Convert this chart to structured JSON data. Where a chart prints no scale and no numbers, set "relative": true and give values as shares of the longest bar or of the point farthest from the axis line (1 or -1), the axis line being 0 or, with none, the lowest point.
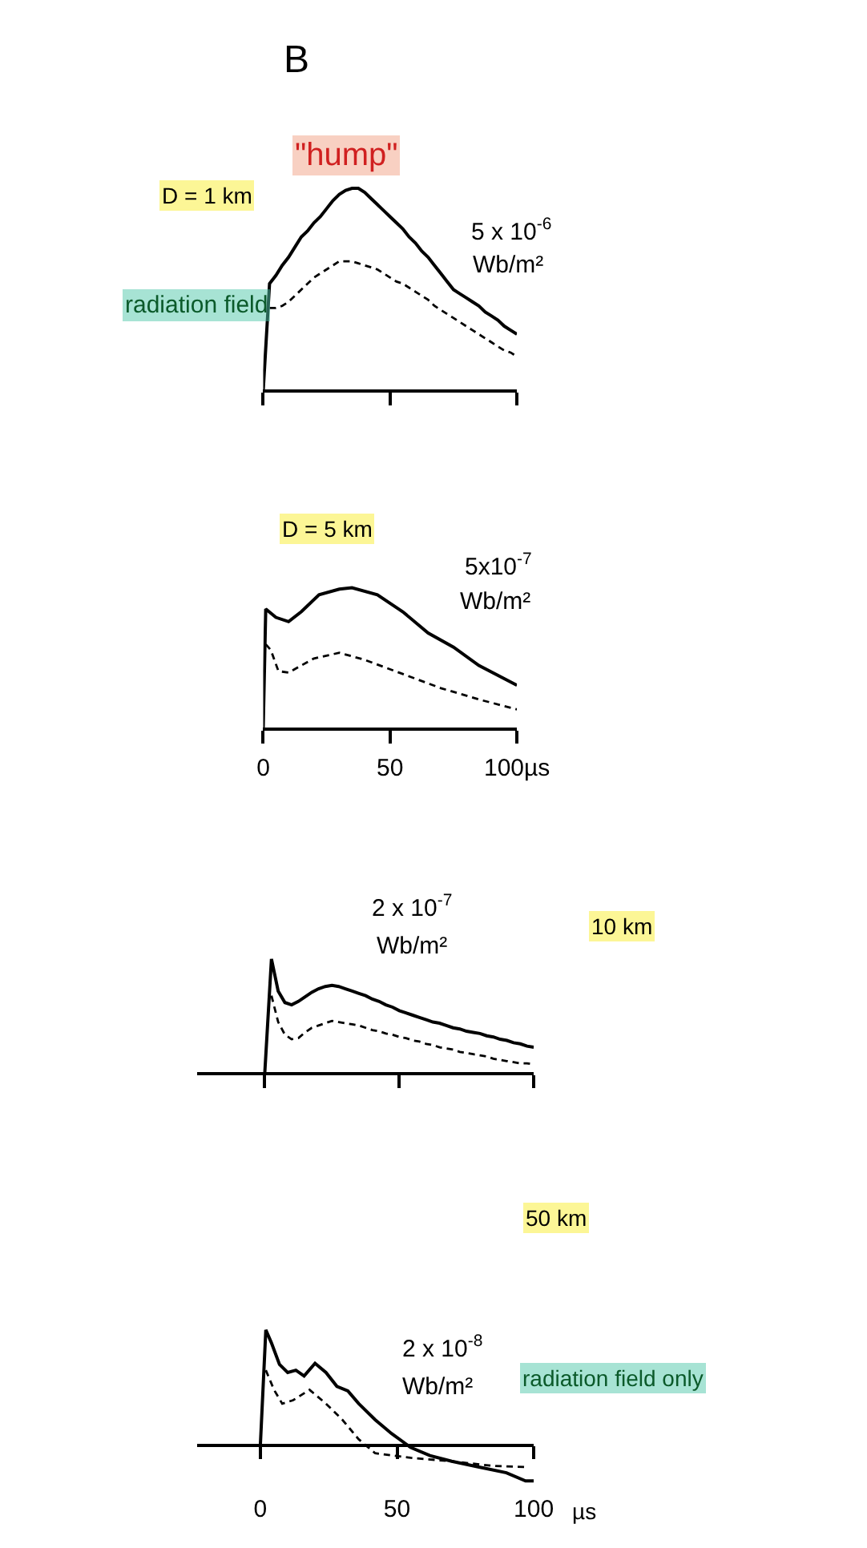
{
  "chart_data": [
    {
      "type": "line",
      "title": "D = 1 km",
      "relative": true,
      "categories": [
        null,
        null,
        null,
        null,
        null,
        null,
        null,
        null,
        null,
        null,
        null,
        null,
        null,
        null,
        null,
        null,
        null,
        null,
        null,
        null,
        null,
        null,
        null,
        null,
        null,
        null,
        null,
        null,
        null,
        null,
        null,
        null,
        null,
        null,
        null,
        null,
        null,
        null,
        null,
        null,
        null
      ],
      "marker": "none",
      "annotations": [
        "B",
        "\"hump\"",
        "radiation field",
        "5 x 10$^{-6}$",
        "Wb/m²"
      ],
      "series": [
        {
          "color": "#000000",
          "line_style": "solid",
          "values": [
            0,
            0.53,
            0.57,
            0.62,
            0.66,
            0.71,
            0.76,
            0.79,
            0.83,
            0.86,
            0.9,
            0.94,
            0.97,
            0.99,
            1,
            1,
            0.98,
            0.95,
            0.92,
            0.89,
            0.86,
            0.83,
            0.8,
            0.76,
            0.73,
            0.69,
            0.66,
            0.62,
            0.58,
            0.54,
            0.5,
            0.48,
            0.46,
            0.44,
            0.42,
            0.39,
            0.37,
            0.35,
            0.32,
            0.3,
            0.28
          ]
        },
        {
          "color": "#000000",
          "line_style": "dashed",
          "values": [
            null,
            0.41,
            0.41,
            0.42,
            0.44,
            0.47,
            0.5,
            0.53,
            0.56,
            0.58,
            0.6,
            0.62,
            0.64,
            0.64,
            0.64,
            0.63,
            0.62,
            0.61,
            0.6,
            0.58,
            0.56,
            0.54,
            0.53,
            0.51,
            0.49,
            0.47,
            0.45,
            0.42,
            0.4,
            0.38,
            0.36,
            0.34,
            0.32,
            0.3,
            0.28,
            0.26,
            0.24,
            0.22,
            0.2,
            0.19,
            0.17
          ]
        }
      ]
    },
    {
      "type": "line",
      "title": "D = 5 km",
      "relative": true,
      "xlim": [
        0,
        100
      ],
      "xticks": [
        0,
        50,
        {
          "value": 100,
          "label": "100µs"
        }
      ],
      "marker": "none",
      "annotations": [
        "5x10$^{-7}$",
        "Wb/m²"
      ],
      "series": [
        {
          "color": "#000000",
          "line_style": "solid",
          "x": [
            0,
            1,
            5,
            10,
            15,
            22,
            30,
            35,
            45,
            55,
            65,
            75,
            85,
            100
          ],
          "values": [
            0,
            0.85,
            0.79,
            0.76,
            0.83,
            0.95,
            0.99,
            1,
            0.95,
            0.83,
            0.68,
            0.58,
            0.45,
            0.31
          ]
        },
        {
          "color": "#000000",
          "line_style": "dashed",
          "x": [
            1,
            3,
            6,
            10,
            20,
            30,
            40,
            55,
            70,
            85,
            100
          ],
          "values": [
            0.6,
            0.56,
            0.41,
            0.4,
            0.5,
            0.54,
            0.49,
            0.39,
            0.29,
            0.21,
            0.14
          ]
        }
      ]
    },
    {
      "type": "line",
      "relative": true,
      "categories": [
        null,
        null,
        null,
        null,
        null,
        null,
        null,
        null,
        null,
        null,
        null,
        null,
        null,
        null,
        null,
        null,
        null,
        null,
        null,
        null,
        null,
        null,
        null,
        null,
        null,
        null,
        null,
        null,
        null,
        null,
        null,
        null,
        null,
        null,
        null,
        null,
        null,
        null,
        null,
        null,
        null,
        null,
        null,
        null,
        null,
        null,
        null,
        null,
        null,
        null,
        null
      ],
      "marker": "none",
      "annotations": [
        "2 x 10$^{-7}$",
        "Wb/m²",
        "10 km"
      ],
      "series": [
        {
          "color": "#000000",
          "line_style": "solid",
          "values": [
            null,
            null,
            null,
            null,
            null,
            null,
            null,
            null,
            null,
            null,
            0,
            1,
            0.72,
            0.62,
            0.6,
            0.63,
            0.67,
            0.71,
            0.74,
            0.76,
            0.77,
            0.76,
            0.74,
            0.72,
            0.7,
            0.68,
            0.65,
            0.63,
            0.6,
            0.58,
            0.55,
            0.53,
            0.51,
            0.49,
            0.47,
            0.45,
            0.44,
            0.42,
            0.4,
            0.39,
            0.37,
            0.36,
            0.35,
            0.33,
            0.32,
            0.3,
            0.29,
            0.27,
            0.26,
            0.24,
            0.23
          ]
        },
        {
          "color": "#000000",
          "line_style": "dashed",
          "values": [
            null,
            null,
            null,
            null,
            null,
            null,
            null,
            null,
            null,
            null,
            null,
            0.68,
            0.45,
            0.34,
            0.3,
            0.31,
            0.36,
            0.4,
            0.42,
            0.44,
            0.46,
            0.45,
            0.44,
            0.43,
            0.42,
            0.4,
            0.38,
            0.37,
            0.35,
            0.34,
            0.32,
            0.31,
            0.29,
            0.28,
            0.26,
            0.25,
            0.23,
            0.22,
            0.21,
            0.19,
            0.18,
            0.17,
            0.16,
            0.15,
            0.13,
            0.12,
            0.11,
            0.1,
            0.09,
            0.09,
            0.08
          ]
        }
      ]
    },
    {
      "type": "line",
      "title": "50 km",
      "xlabel": "µs",
      "relative": true,
      "xlim": [
        -23,
        100
      ],
      "xticks": [
        0,
        50,
        100
      ],
      "marker": "none",
      "annotations": [
        "2 x 10$^{-8}$",
        "Wb/m²",
        "radiation field only"
      ],
      "series": [
        {
          "color": "#000000",
          "line_style": "solid",
          "x": [
            0,
            2,
            4,
            7,
            10,
            13,
            16,
            20,
            24,
            28,
            32,
            36,
            42,
            48,
            55,
            62,
            70,
            80,
            90,
            97,
            100
          ],
          "values": [
            0,
            1,
            0.89,
            0.7,
            0.63,
            0.65,
            0.6,
            0.71,
            0.63,
            0.51,
            0.47,
            0.36,
            0.22,
            0.1,
            -0.02,
            -0.09,
            -0.14,
            -0.19,
            -0.24,
            -0.31,
            -0.31
          ]
        },
        {
          "color": "#000000",
          "line_style": "dashed",
          "x": [
            2,
            5,
            8,
            12,
            18,
            24,
            30,
            36,
            42,
            55,
            70,
            85,
            97
          ],
          "values": [
            0.65,
            0.48,
            0.36,
            0.39,
            0.48,
            0.36,
            0.22,
            0.05,
            -0.07,
            -0.11,
            -0.14,
            -0.18,
            -0.19
          ]
        }
      ]
    }
  ]
}
